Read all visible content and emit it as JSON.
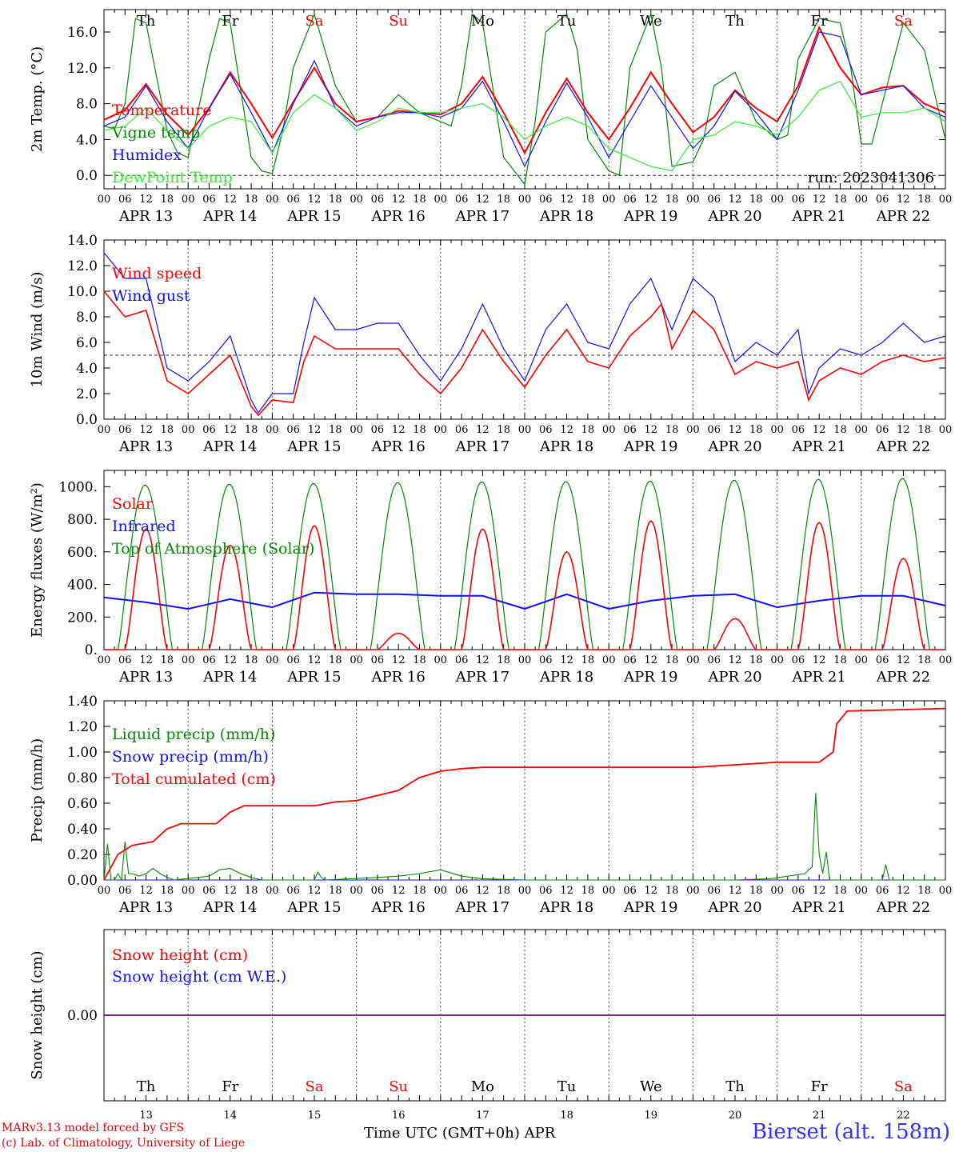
{
  "run_label": "run: 2023041306",
  "days_dow": [
    "Th",
    "Fr",
    "Sa",
    "Su",
    "Mo",
    "Tu",
    "We",
    "Th",
    "Fr",
    "Sa"
  ],
  "weekend_days": [
    2,
    3,
    9
  ],
  "days_num": [
    "13",
    "14",
    "15",
    "16",
    "17",
    "18",
    "19",
    "20",
    "21",
    "22"
  ],
  "day_labels": [
    "APR 13",
    "APR 14",
    "APR 15",
    "APR 16",
    "APR 17",
    "APR 18",
    "APR 19",
    "APR 20",
    "APR 21",
    "APR 22"
  ],
  "hour_ticks": [
    "00",
    "06",
    "12",
    "18"
  ],
  "colors": {
    "red": "#ff0000",
    "green": "#008c00",
    "blue": "#1010ff",
    "lightgreen": "#33ee33",
    "purple": "#7a3090"
  },
  "chart_data": [
    {
      "type": "line",
      "ylabel": "2m Temp. (°C)",
      "ylim": [
        -1.5,
        18.5
      ],
      "yticks": [
        "0.0",
        "4.0",
        "8.0",
        "12.0",
        "16.0"
      ],
      "ytick_values": [
        0,
        4,
        8,
        12,
        16
      ],
      "dashed_reference": 0,
      "x_unit": "hours from APR 13 00 UTC",
      "series": [
        {
          "name": "Temperature",
          "color": "red",
          "x": [
            0,
            6,
            12,
            18,
            24,
            30,
            36,
            42,
            48,
            54,
            60,
            66,
            72,
            78,
            84,
            90,
            96,
            102,
            108,
            114,
            120,
            126,
            132,
            138,
            144,
            150,
            156,
            162,
            168,
            174,
            180,
            186,
            192,
            198,
            204,
            210,
            216,
            222,
            228,
            234,
            240
          ],
          "y": [
            6.2,
            7.3,
            10.2,
            6.8,
            4.5,
            7.5,
            11.5,
            8.0,
            4.2,
            8.2,
            12.0,
            8.0,
            6.0,
            6.5,
            7.2,
            7.0,
            6.8,
            8.0,
            11.0,
            7.0,
            2.5,
            7.0,
            10.8,
            7.0,
            4.0,
            7.5,
            11.5,
            8.0,
            4.8,
            6.5,
            9.5,
            7.5,
            6.0,
            10.0,
            16.5,
            12.0,
            9.0,
            9.8,
            10.0,
            8.0,
            7.0
          ]
        },
        {
          "name": "Vigne temp",
          "color": "green",
          "x": [
            0,
            3,
            6,
            9,
            12,
            18,
            21,
            24,
            30,
            33,
            36,
            42,
            45,
            48,
            51,
            54,
            60,
            66,
            72,
            78,
            84,
            90,
            96,
            99,
            102,
            105,
            108,
            114,
            117,
            120,
            123,
            126,
            132,
            135,
            138,
            144,
            147,
            150,
            156,
            159,
            162,
            168,
            171,
            174,
            180,
            186,
            192,
            195,
            198,
            204,
            210,
            213,
            216,
            219,
            222,
            228,
            234,
            240
          ],
          "y": [
            5.5,
            5.2,
            8.0,
            17.5,
            17.0,
            5.0,
            2.5,
            2.0,
            13.0,
            17.5,
            17.0,
            2.0,
            0.5,
            0.2,
            5.0,
            12.0,
            18.0,
            10.0,
            6.0,
            6.5,
            9.0,
            7.0,
            6.0,
            5.5,
            10.0,
            18.0,
            17.0,
            2.0,
            0.5,
            -1.0,
            6.0,
            16.0,
            18.0,
            14.0,
            4.0,
            0.5,
            0.0,
            12.0,
            18.0,
            12.0,
            1.0,
            1.5,
            4.0,
            10.0,
            11.5,
            6.0,
            4.0,
            4.5,
            13.0,
            17.5,
            17.0,
            12.0,
            3.5,
            3.5,
            8.0,
            17.0,
            14.0,
            4.0
          ]
        },
        {
          "name": "Humidex",
          "color": "blue",
          "x": [
            0,
            6,
            12,
            18,
            24,
            30,
            36,
            42,
            48,
            54,
            60,
            66,
            72,
            78,
            84,
            90,
            96,
            102,
            108,
            114,
            120,
            126,
            132,
            138,
            144,
            150,
            156,
            162,
            168,
            174,
            180,
            186,
            192,
            198,
            204,
            210,
            216,
            222,
            228,
            234,
            240
          ],
          "y": [
            5.5,
            6.5,
            10.0,
            6.0,
            3.0,
            7.5,
            11.3,
            7.0,
            2.5,
            8.0,
            12.8,
            7.5,
            5.5,
            6.5,
            7.0,
            7.0,
            6.5,
            7.5,
            10.5,
            6.0,
            1.0,
            6.0,
            10.3,
            6.5,
            2.0,
            6.0,
            10.0,
            6.5,
            3.0,
            5.5,
            9.4,
            7.0,
            4.0,
            9.5,
            16.0,
            15.5,
            9.0,
            9.5,
            10.0,
            7.5,
            6.5
          ]
        },
        {
          "name": "DewPoint Temp",
          "color": "lightgreen",
          "x": [
            0,
            6,
            12,
            18,
            24,
            30,
            36,
            42,
            48,
            54,
            60,
            66,
            72,
            78,
            84,
            90,
            96,
            102,
            108,
            114,
            120,
            126,
            132,
            138,
            144,
            150,
            156,
            162,
            168,
            174,
            180,
            186,
            192,
            198,
            204,
            210,
            216,
            222,
            228,
            234,
            240
          ],
          "y": [
            5.0,
            5.5,
            7.5,
            5.0,
            3.0,
            5.5,
            6.5,
            6.0,
            2.5,
            7.0,
            9.0,
            7.5,
            5.0,
            6.0,
            7.5,
            7.0,
            7.0,
            7.5,
            8.0,
            6.5,
            4.0,
            5.5,
            6.5,
            5.5,
            3.0,
            2.0,
            1.0,
            0.5,
            4.0,
            4.5,
            6.0,
            5.5,
            4.5,
            6.5,
            9.5,
            10.5,
            6.5,
            7.0,
            7.0,
            7.5,
            6.0
          ]
        }
      ]
    },
    {
      "type": "line",
      "ylabel": "10m Wind (m/s)",
      "ylim": [
        0,
        14
      ],
      "yticks": [
        "0.0",
        "2.0",
        "4.0",
        "6.0",
        "8.0",
        "10.0",
        "12.0",
        "14.0"
      ],
      "ytick_values": [
        0,
        2,
        4,
        6,
        8,
        10,
        12,
        14
      ],
      "dashed_reference": 5,
      "x_unit": "hours from APR 13 00 UTC",
      "series": [
        {
          "name": "Wind speed",
          "color": "red",
          "x": [
            0,
            6,
            12,
            18,
            24,
            30,
            36,
            42,
            44,
            48,
            54,
            57,
            60,
            66,
            72,
            78,
            84,
            90,
            96,
            102,
            108,
            114,
            120,
            126,
            132,
            138,
            144,
            150,
            156,
            159,
            162,
            168,
            174,
            180,
            186,
            192,
            198,
            201,
            204,
            210,
            216,
            222,
            228,
            234,
            240
          ],
          "y": [
            10.0,
            8.0,
            8.5,
            3.0,
            2.0,
            3.5,
            5.0,
            1.0,
            0.3,
            1.5,
            1.3,
            4.5,
            6.5,
            5.5,
            5.5,
            5.5,
            5.5,
            3.5,
            2.0,
            4.0,
            7.0,
            4.5,
            2.5,
            5.0,
            7.0,
            4.5,
            4.0,
            6.5,
            8.0,
            9.0,
            5.5,
            8.5,
            7.0,
            3.5,
            4.5,
            4.0,
            4.5,
            1.5,
            3.0,
            4.0,
            3.5,
            4.5,
            5.0,
            4.5,
            4.8
          ]
        },
        {
          "name": "Wind gust",
          "color": "blue",
          "x": [
            0,
            6,
            12,
            18,
            24,
            30,
            36,
            42,
            44,
            48,
            54,
            57,
            60,
            66,
            72,
            78,
            84,
            90,
            96,
            102,
            108,
            114,
            120,
            126,
            132,
            138,
            144,
            150,
            156,
            162,
            168,
            174,
            180,
            186,
            192,
            198,
            201,
            204,
            210,
            216,
            222,
            228,
            234,
            240
          ],
          "y": [
            13.0,
            11.0,
            11.0,
            4.0,
            3.0,
            4.5,
            6.5,
            1.5,
            0.5,
            2.0,
            2.0,
            6.0,
            9.5,
            7.0,
            7.0,
            7.5,
            7.5,
            5.0,
            3.0,
            5.5,
            9.0,
            5.5,
            3.0,
            7.0,
            9.0,
            6.0,
            5.5,
            9.0,
            11.0,
            7.0,
            11.0,
            9.5,
            4.5,
            6.0,
            5.0,
            7.0,
            2.0,
            4.0,
            5.5,
            5.0,
            6.0,
            7.5,
            6.0,
            6.5
          ]
        }
      ]
    },
    {
      "type": "line",
      "ylabel": "Energy fluxes (W/m²)",
      "ylim": [
        0,
        1100
      ],
      "yticks": [
        "0.",
        "200.",
        "400.",
        "600.",
        "800.",
        "1000."
      ],
      "ytick_values": [
        0,
        200,
        400,
        600,
        800,
        1000
      ],
      "x_unit": "hours from APR 13 00 UTC",
      "toa_peaks": [
        1010,
        1015,
        1020,
        1025,
        1030,
        1032,
        1035,
        1040,
        1045,
        1050
      ],
      "solar_peaks": [
        740,
        640,
        760,
        100,
        740,
        600,
        790,
        190,
        780,
        560
      ],
      "series": [
        {
          "name": "Solar",
          "color": "red"
        },
        {
          "name": "Infrared",
          "color": "blue",
          "x": [
            0,
            12,
            24,
            36,
            48,
            60,
            72,
            84,
            96,
            108,
            120,
            132,
            144,
            156,
            168,
            180,
            192,
            204,
            216,
            228,
            240
          ],
          "y": [
            320,
            290,
            250,
            310,
            260,
            350,
            340,
            340,
            330,
            330,
            250,
            340,
            250,
            300,
            330,
            340,
            260,
            300,
            330,
            330,
            270
          ]
        },
        {
          "name": "Top of Atmosphere (Solar)",
          "color": "green"
        }
      ]
    },
    {
      "type": "line",
      "ylabel": "Precip (mm/h)",
      "ylim": [
        0,
        1.4
      ],
      "yticks": [
        "0.00",
        "0.20",
        "0.40",
        "0.60",
        "0.80",
        "1.00",
        "1.20",
        "1.40"
      ],
      "ytick_values": [
        0,
        0.2,
        0.4,
        0.6,
        0.8,
        1.0,
        1.2,
        1.4
      ],
      "x_unit": "hours from APR 13 00 UTC",
      "series": [
        {
          "name": "Liquid precip (mm/h)",
          "color": "green",
          "x": [
            0,
            1,
            2,
            3,
            4,
            5,
            6,
            7,
            8,
            10,
            12,
            14,
            16,
            18,
            20,
            30,
            33,
            36,
            39,
            42,
            45,
            60,
            61,
            62,
            63,
            78,
            84,
            90,
            96,
            102,
            108,
            120,
            144,
            180,
            190,
            200,
            201,
            202,
            203,
            204,
            205,
            206,
            207,
            208,
            222,
            223,
            224,
            240
          ],
          "y": [
            0,
            0.28,
            0,
            0,
            0.05,
            0,
            0.3,
            0.05,
            0.05,
            0.03,
            0.05,
            0.09,
            0.05,
            0.02,
            0,
            0.03,
            0.08,
            0.09,
            0.05,
            0.02,
            0,
            0,
            0.06,
            0.02,
            0,
            0.02,
            0.03,
            0.05,
            0.08,
            0.03,
            0.01,
            0,
            0,
            0,
            0.01,
            0.05,
            0.08,
            0.1,
            0.68,
            0.2,
            0.05,
            0.22,
            0,
            0,
            0,
            0.12,
            0,
            0
          ]
        },
        {
          "name": "Snow precip (mm/h)",
          "color": "blue",
          "x": [
            0,
            240
          ],
          "y": [
            0,
            0
          ]
        },
        {
          "name": "Total cumulated (cm)",
          "color": "red",
          "x": [
            0,
            4,
            8,
            14,
            18,
            22,
            24,
            32,
            36,
            40,
            48,
            60,
            66,
            72,
            84,
            90,
            96,
            102,
            108,
            120,
            168,
            180,
            192,
            204,
            208,
            209,
            212,
            240
          ],
          "y": [
            0,
            0.2,
            0.27,
            0.3,
            0.4,
            0.44,
            0.44,
            0.44,
            0.53,
            0.58,
            0.58,
            0.58,
            0.61,
            0.62,
            0.7,
            0.8,
            0.85,
            0.87,
            0.88,
            0.88,
            0.88,
            0.9,
            0.92,
            0.92,
            1.0,
            1.22,
            1.32,
            1.34
          ]
        }
      ]
    },
    {
      "type": "line",
      "ylabel": "Snow height (cm)",
      "yticks": [
        "0.00"
      ],
      "x_unit": "hours from APR 13 00 UTC",
      "series": [
        {
          "name": "Snow height (cm)",
          "color": "red",
          "x": [
            0,
            240
          ],
          "y": [
            0,
            0
          ]
        },
        {
          "name": "Snow height (cm W.E.)",
          "color": "blue",
          "x": [
            0,
            240
          ],
          "y": [
            0,
            0
          ]
        }
      ]
    }
  ],
  "footer": {
    "credit1": "MARv3.13 model forced by GFS",
    "credit2": "(c) Lab. of Climatology, University of Liege",
    "xtitle": "Time UTC (GMT+0h) APR",
    "station": "Bierset (alt. 158m)"
  }
}
